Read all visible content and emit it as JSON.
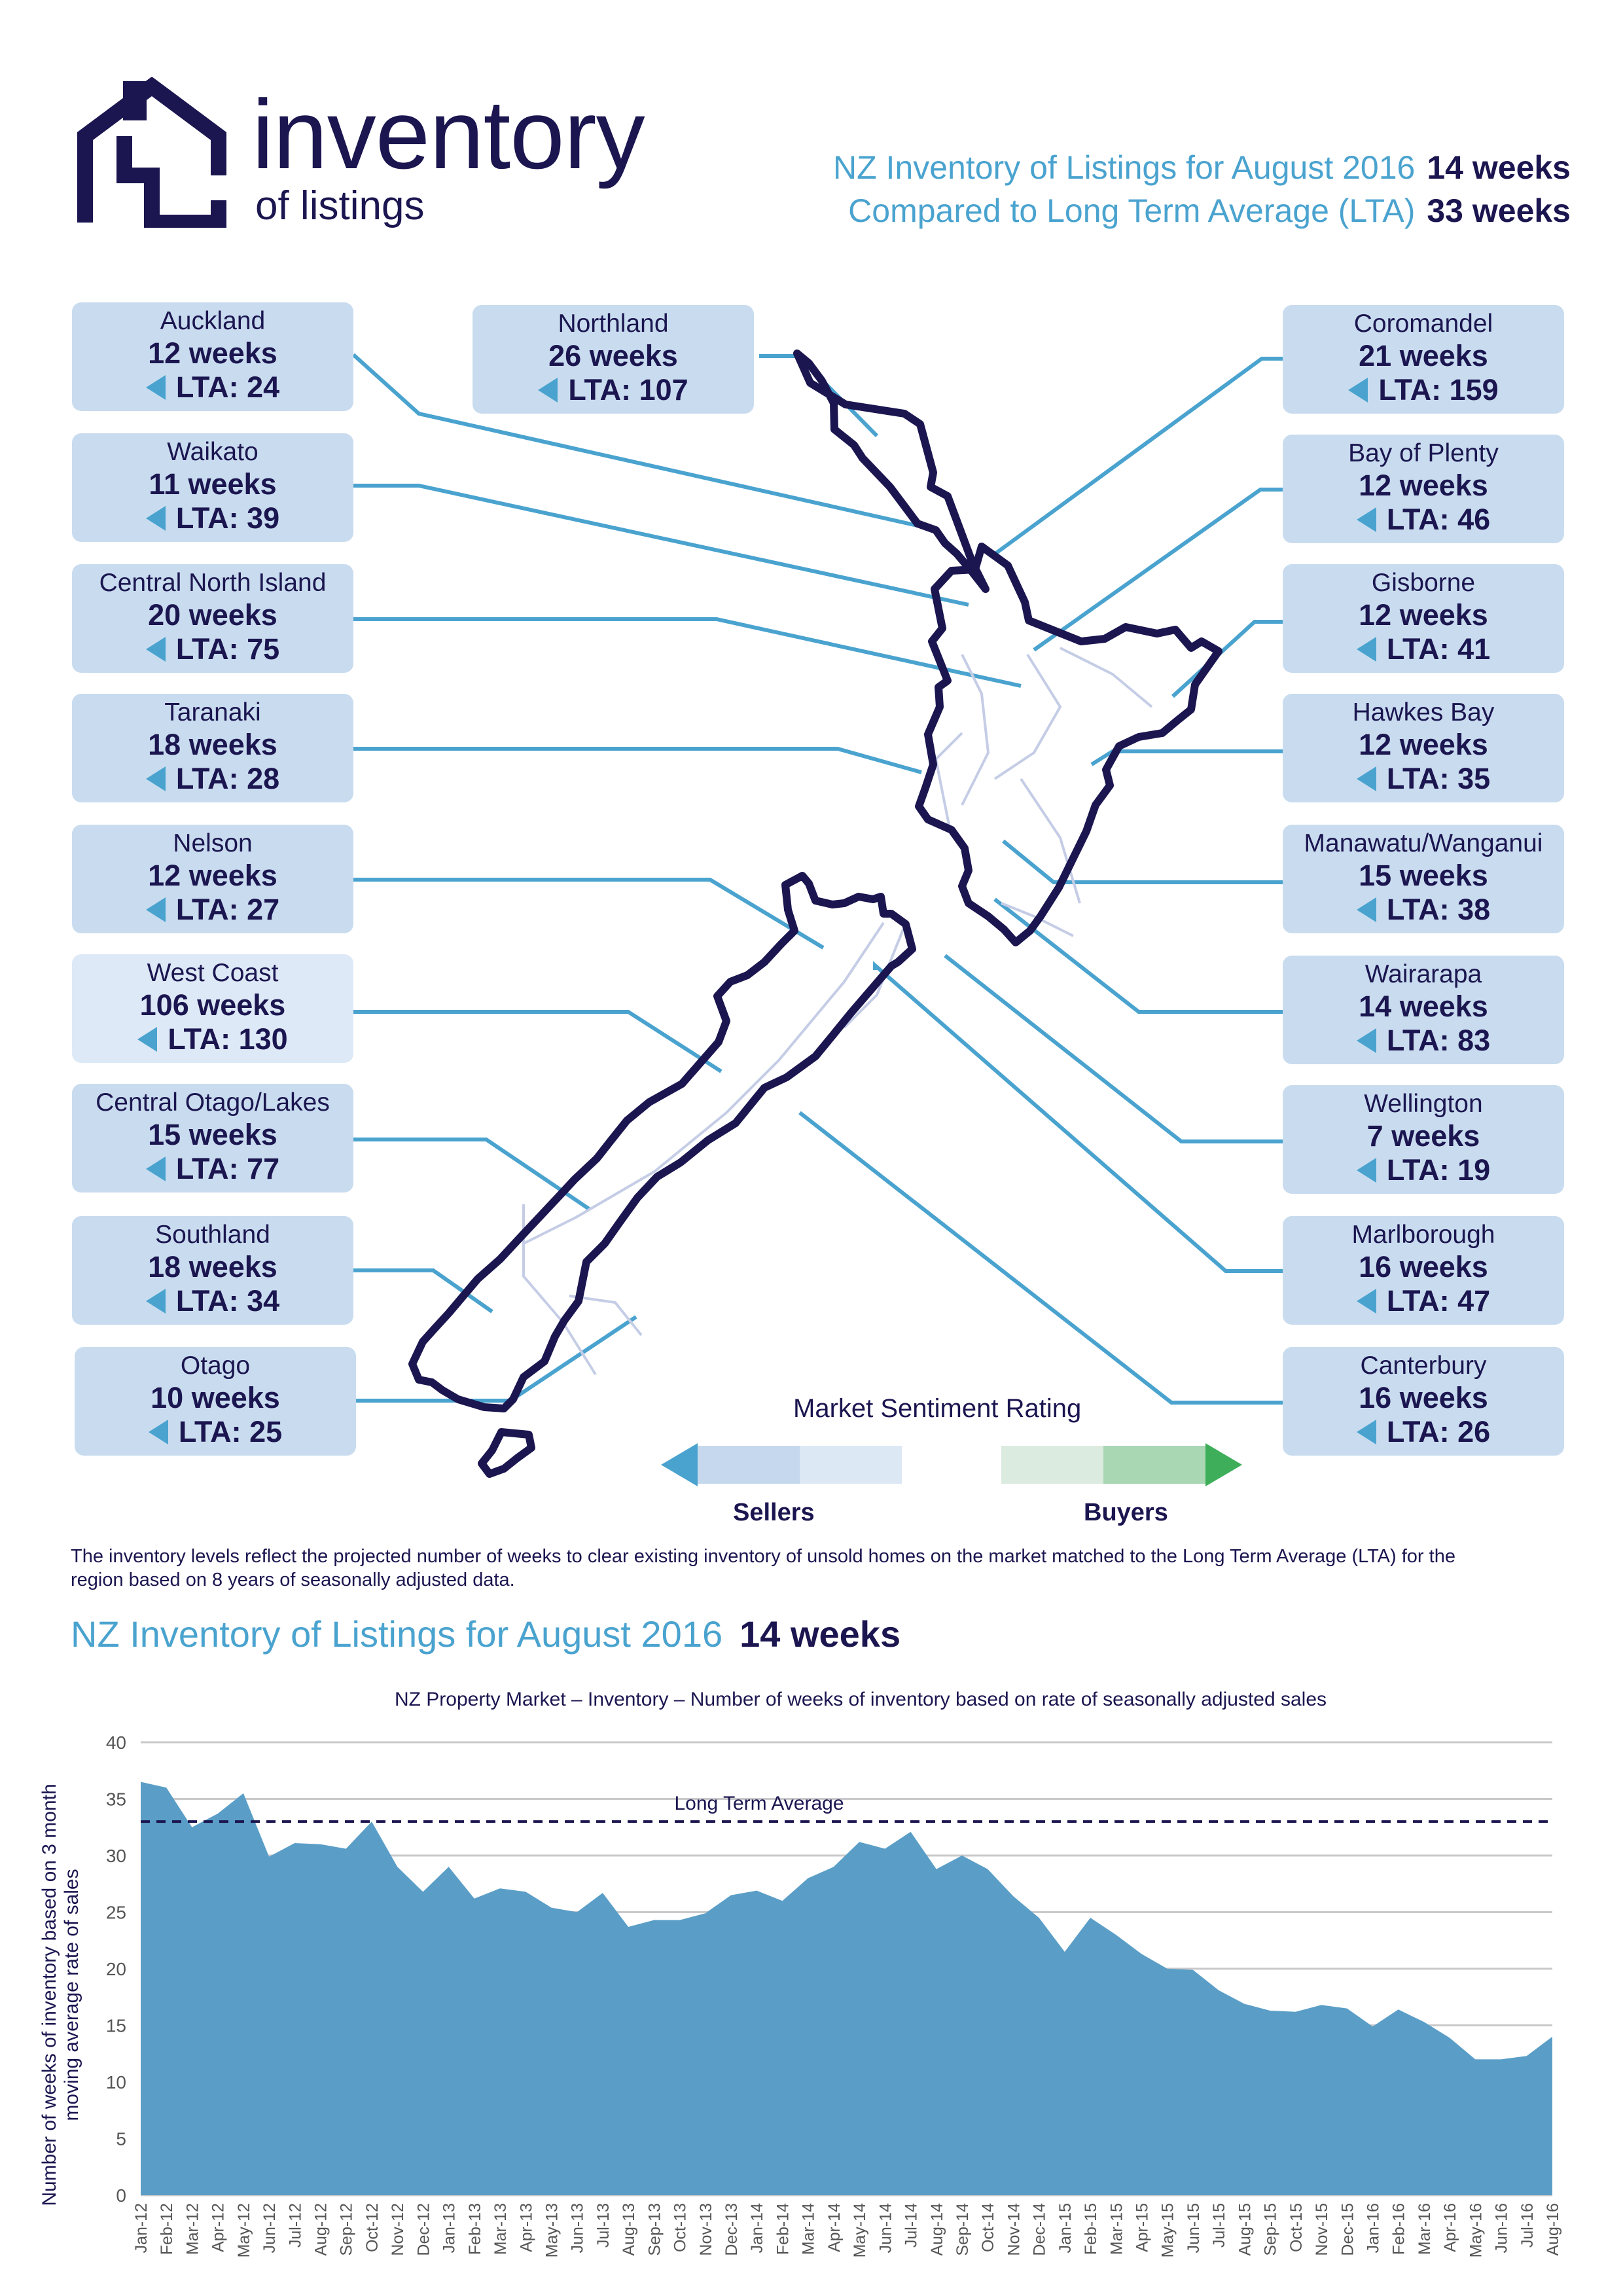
{
  "logo": {
    "title": "inventory",
    "subtitle": "of listings",
    "icon": "house-icon"
  },
  "header": {
    "row1_label": "NZ Inventory of Listings for August 2016",
    "row1_value": "14 weeks",
    "row2_label": "Compared to Long Term Average (LTA)",
    "row2_value": "33 weeks"
  },
  "regions": [
    {
      "name": "Auckland",
      "weeks": "12 weeks",
      "lta": "LTA: 24"
    },
    {
      "name": "Northland",
      "weeks": "26 weeks",
      "lta": "LTA: 107"
    },
    {
      "name": "Waikato",
      "weeks": "11 weeks",
      "lta": "LTA: 39"
    },
    {
      "name": "Central North Island",
      "weeks": "20 weeks",
      "lta": "LTA: 75"
    },
    {
      "name": "Taranaki",
      "weeks": "18 weeks",
      "lta": "LTA: 28"
    },
    {
      "name": "Nelson",
      "weeks": "12 weeks",
      "lta": "LTA: 27"
    },
    {
      "name": "West Coast",
      "weeks": "106 weeks",
      "lta": "LTA: 130"
    },
    {
      "name": "Central Otago/Lakes",
      "weeks": "15 weeks",
      "lta": "LTA: 77"
    },
    {
      "name": "Southland",
      "weeks": "18 weeks",
      "lta": "LTA: 34"
    },
    {
      "name": "Otago",
      "weeks": "10 weeks",
      "lta": "LTA: 25"
    },
    {
      "name": "Coromandel",
      "weeks": "21 weeks",
      "lta": "LTA: 159"
    },
    {
      "name": "Bay of Plenty",
      "weeks": "12 weeks",
      "lta": "LTA: 46"
    },
    {
      "name": "Gisborne",
      "weeks": "12 weeks",
      "lta": "LTA: 41"
    },
    {
      "name": "Hawkes Bay",
      "weeks": "12 weeks",
      "lta": "LTA: 35"
    },
    {
      "name": "Manawatu/Wanganui",
      "weeks": "15 weeks",
      "lta": "LTA: 38"
    },
    {
      "name": "Wairarapa",
      "weeks": "14 weeks",
      "lta": "LTA: 83"
    },
    {
      "name": "Wellington",
      "weeks": "7 weeks",
      "lta": "LTA: 19"
    },
    {
      "name": "Marlborough",
      "weeks": "16 weeks",
      "lta": "LTA: 47"
    },
    {
      "name": "Canterbury",
      "weeks": "16 weeks",
      "lta": "LTA: 26"
    }
  ],
  "sentiment": {
    "title": "Market Sentiment Rating",
    "sellers": "Sellers",
    "buyers": "Buyers",
    "colors": [
      "#4aa3cf",
      "#c6d8ed",
      "#dde8f5",
      "#dcebdf",
      "#a9d6b3",
      "#3fae5a"
    ]
  },
  "note": "The inventory levels reflect the projected number of weeks to clear existing inventory of unsold homes on the market matched to the Long Term Average (LTA) for the region based on 8 years of seasonally adjusted data.",
  "chart_heading": {
    "label": "NZ Inventory of Listings for August 2016",
    "value": "14 weeks"
  },
  "chart_data": {
    "type": "area",
    "title": "NZ Property Market – Inventory – Number of weeks of inventory based on rate of seasonally adjusted sales",
    "ylabel": "Number of weeks of inventory based on 3 month moving average rate of sales",
    "xlabel": "",
    "ylim": [
      0,
      40
    ],
    "yticks": [
      0,
      5,
      10,
      15,
      20,
      25,
      30,
      35,
      40
    ],
    "grid": true,
    "fill_color": "#5a9ec7",
    "reference_line": {
      "label": "Long Term Average",
      "value": 33
    },
    "categories": [
      "Jan-12",
      "Feb-12",
      "Mar-12",
      "Apr-12",
      "May-12",
      "Jun-12",
      "Jul-12",
      "Aug-12",
      "Sep-12",
      "Oct-12",
      "Nov-12",
      "Dec-12",
      "Jan-13",
      "Feb-13",
      "Mar-13",
      "Apr-13",
      "May-13",
      "Jun-13",
      "Jul-13",
      "Aug-13",
      "Sep-13",
      "Oct-13",
      "Nov-13",
      "Dec-13",
      "Jan-14",
      "Feb-14",
      "Mar-14",
      "Apr-14",
      "May-14",
      "Jun-14",
      "Jul-14",
      "Aug-14",
      "Sep-14",
      "Oct-14",
      "Nov-14",
      "Dec-14",
      "Jan-15",
      "Feb-15",
      "Mar-15",
      "Apr-15",
      "May-15",
      "Jun-15",
      "Jul-15",
      "Aug-15",
      "Sep-15",
      "Oct-15",
      "Nov-15",
      "Dec-15",
      "Jan-16",
      "Feb-16",
      "Mar-16",
      "Apr-16",
      "May-16",
      "Jun-16",
      "Jul-16",
      "Aug-16"
    ],
    "values": [
      36.5,
      36,
      32.5,
      33.7,
      35.5,
      29.9,
      31.1,
      31,
      30.6,
      33,
      29,
      26.8,
      29,
      26.2,
      27.1,
      26.8,
      25.4,
      25,
      26.7,
      23.7,
      24.3,
      24.3,
      24.9,
      26.5,
      26.9,
      26,
      28,
      29,
      31.2,
      30.6,
      32.1,
      28.8,
      30,
      28.8,
      26.4,
      24.5,
      21.5,
      24.5,
      23,
      21.3,
      20,
      19.9,
      18.1,
      16.9,
      16.3,
      16.2,
      16.8,
      16.5,
      14.9,
      16.4,
      15.3,
      13.9,
      12,
      12,
      12.3,
      14
    ]
  }
}
